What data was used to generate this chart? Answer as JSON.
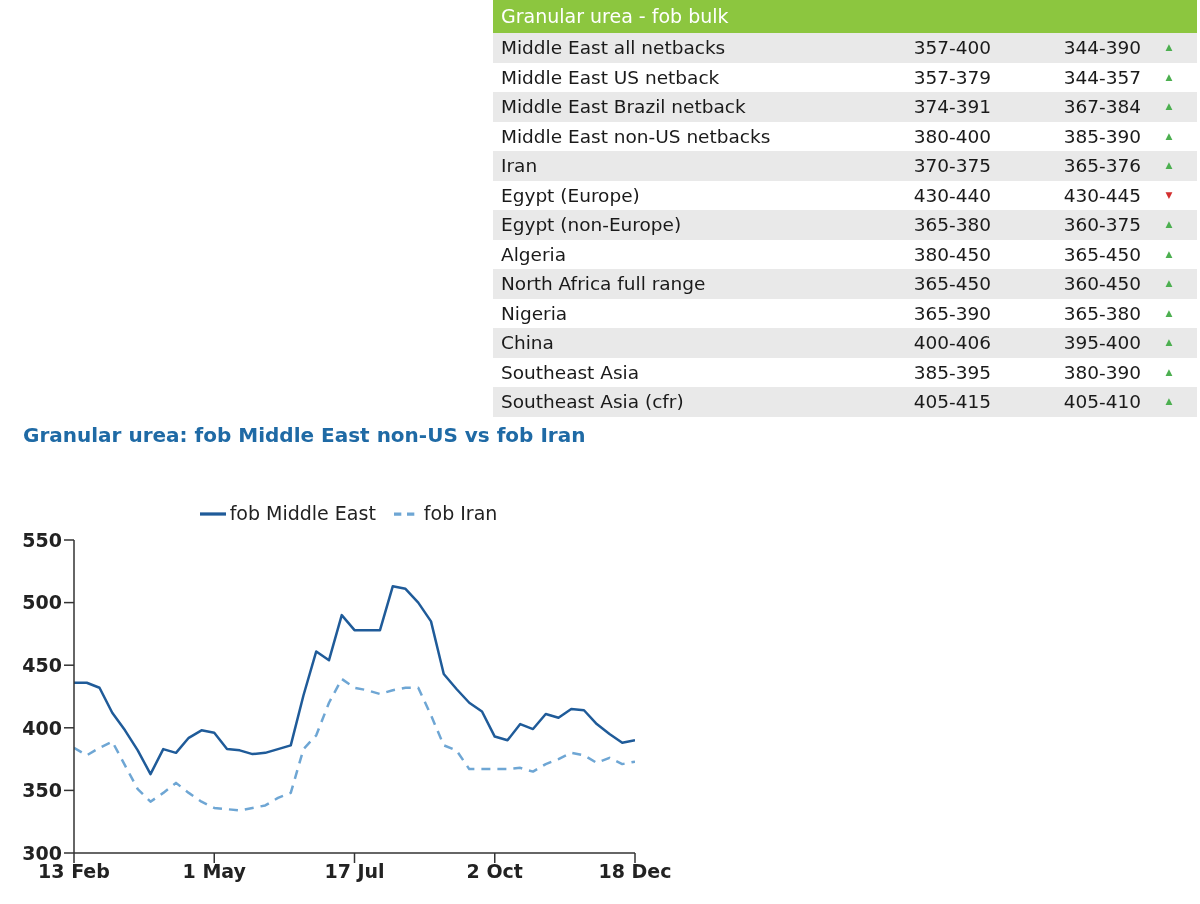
{
  "chart_data": [
    {
      "type": "other",
      "title": "Granular urea - fob bulk",
      "categories": [
        "Middle East all netbacks",
        "Middle East US netback",
        "Middle East Brazil netback",
        "Middle East non-US netbacks",
        "Iran",
        "Egypt (Europe)",
        "Egypt (non-Europe)",
        "Algeria",
        "North Africa full range",
        "Nigeria",
        "China",
        "Southeast Asia",
        "Southeast Asia (cfr)"
      ],
      "cell_labels": [
        [
          "357-400",
          "344-390",
          "▲"
        ],
        [
          "357-379",
          "344-357",
          "▲"
        ],
        [
          "374-391",
          "367-384",
          "▲"
        ],
        [
          "380-400",
          "385-390",
          "▲"
        ],
        [
          "370-375",
          "365-376",
          "▲"
        ],
        [
          "430-440",
          "430-445",
          "▼"
        ],
        [
          "365-380",
          "360-375",
          "▲"
        ],
        [
          "380-450",
          "365-450",
          "▲"
        ],
        [
          "365-450",
          "360-450",
          "▲"
        ],
        [
          "365-390",
          "365-380",
          "▲"
        ],
        [
          "400-406",
          "395-400",
          "▲"
        ],
        [
          "385-395",
          "380-390",
          "▲"
        ],
        [
          "405-415",
          "405-410",
          "▲"
        ]
      ]
    },
    {
      "type": "line",
      "title": "Granular urea: fob Middle East non-US vs fob Iran",
      "x": [
        "--02-13",
        "--02-20",
        "--02-27",
        "--03-06",
        "--03-13",
        "--03-20",
        "--03-27",
        "--04-03",
        "--04-10",
        "--04-17",
        "--04-24",
        "--05-01",
        "--05-08",
        "--05-15",
        "--05-22",
        "--05-29",
        "--06-05",
        "--06-12",
        "--06-19",
        "--06-26",
        "--07-03",
        "--07-10",
        "--07-17",
        "--07-24",
        "--07-31",
        "--08-07",
        "--08-14",
        "--08-21",
        "--08-28",
        "--09-04",
        "--09-11",
        "--09-18",
        "--09-25",
        "--10-02",
        "--10-09",
        "--10-16",
        "--10-23",
        "--10-30",
        "--11-06",
        "--11-13",
        "--11-20",
        "--11-27",
        "--12-04",
        "--12-11",
        "--12-18"
      ],
      "series": [
        {
          "name": "fob Middle East",
          "color": "#1f5b99",
          "line_style": "solid",
          "values": [
            436,
            436,
            432,
            412,
            398,
            382,
            363,
            383,
            380,
            392,
            398,
            396,
            383,
            382,
            379,
            380,
            383,
            386,
            426,
            461,
            454,
            490,
            478,
            478,
            478,
            513,
            511,
            500,
            485,
            443,
            431,
            420,
            413,
            393,
            390,
            403,
            399,
            411,
            408,
            415,
            414,
            403,
            395,
            388,
            390
          ]
        },
        {
          "name": "fob Iran",
          "color": "#6ea6d4",
          "line_style": "dashed",
          "values": [
            384,
            378,
            384,
            389,
            370,
            351,
            341,
            348,
            356,
            348,
            341,
            336,
            335,
            334,
            336,
            338,
            344,
            348,
            383,
            394,
            420,
            439,
            432,
            430,
            427,
            430,
            432,
            432,
            410,
            386,
            382,
            367,
            367,
            367,
            367,
            368,
            365,
            371,
            375,
            380,
            378,
            372,
            376,
            371,
            373
          ]
        }
      ],
      "xlim": [
        "--02-13",
        "--12-18"
      ],
      "xticks": [
        {
          "value": "--02-13",
          "label": "13 Feb"
        },
        {
          "value": "--05-01",
          "label": "1 May"
        },
        {
          "value": "--07-17",
          "label": "17 Jul"
        },
        {
          "value": "--10-02",
          "label": "2 Oct"
        },
        {
          "value": "--12-18",
          "label": "18 Dec"
        }
      ],
      "ylim": [
        300,
        550
      ],
      "yticks": [
        300,
        350,
        400,
        450,
        500,
        550
      ],
      "grid": false,
      "legend": "top"
    }
  ]
}
